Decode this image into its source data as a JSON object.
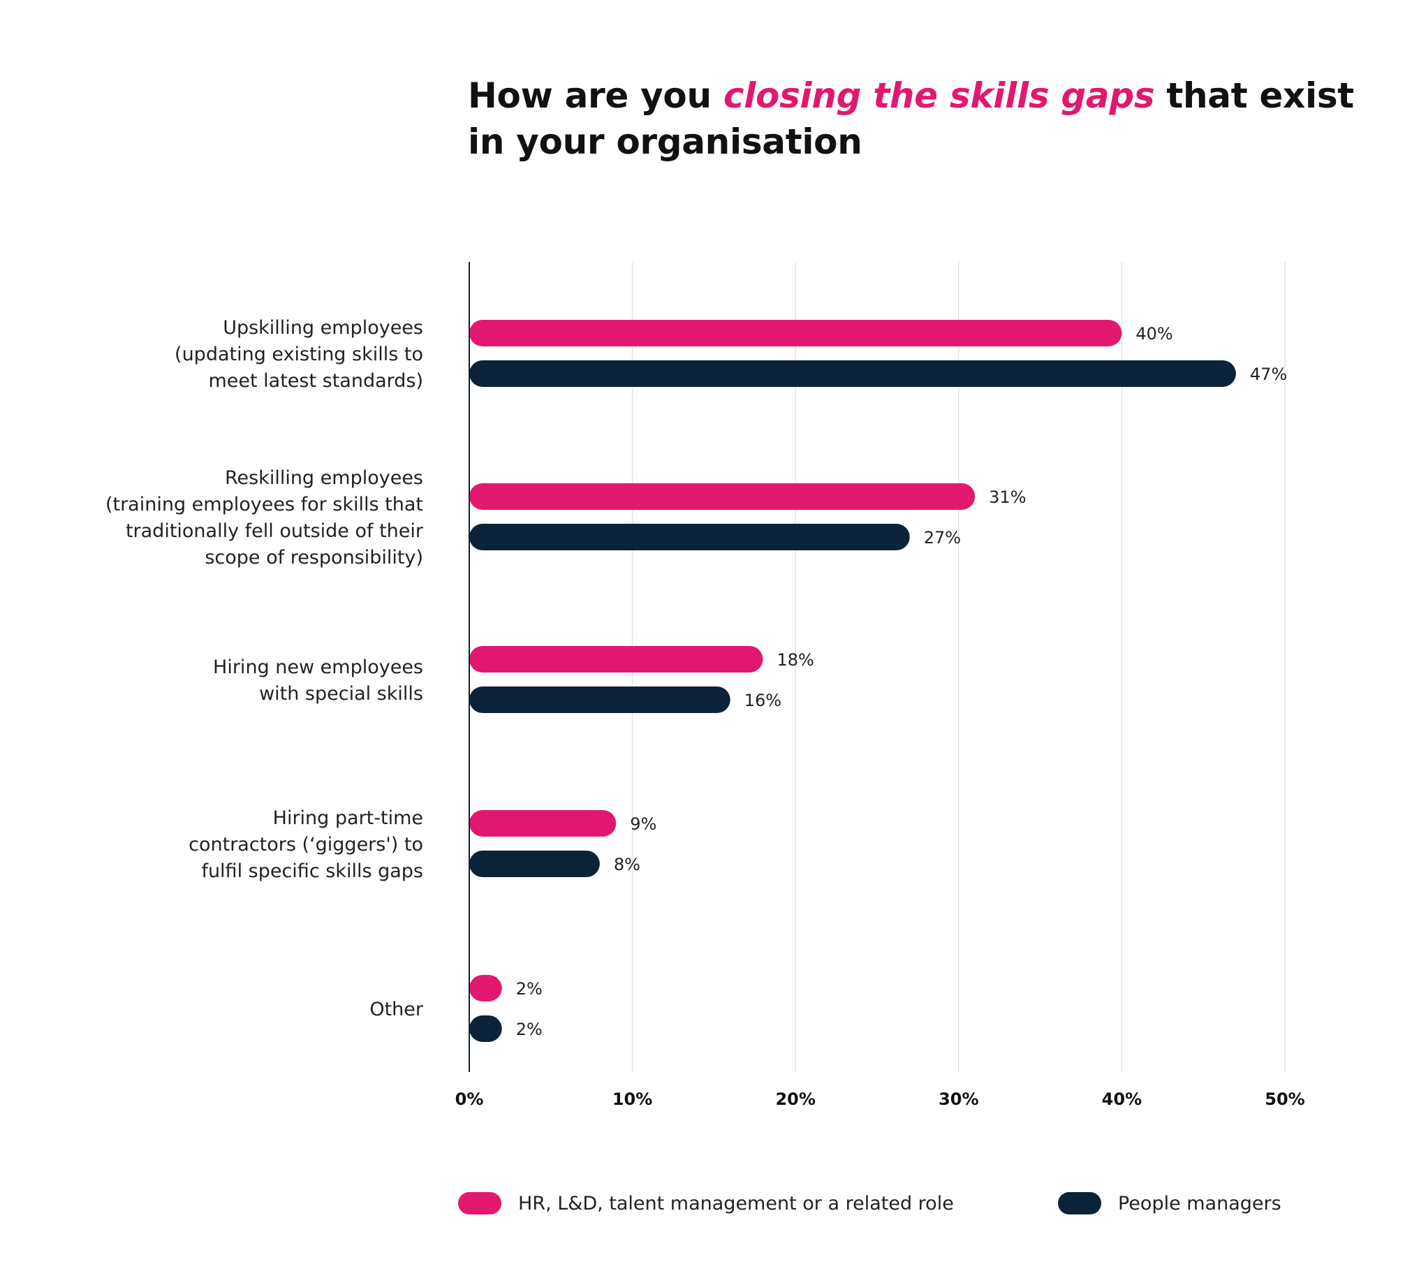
{
  "title": {
    "part1": "How are you ",
    "highlight": "closing the skills gaps",
    "part2": " that exist in your organisation"
  },
  "colors": {
    "accent": "#e2186f",
    "dark": "#0c2238",
    "grid": "#e4e4e4",
    "axis": "#0c2238",
    "text": "#222222"
  },
  "chart_data": {
    "type": "bar",
    "orientation": "horizontal",
    "categories": [
      [
        "Upskilling employees",
        "(updating existing skills to",
        "meet latest standards)"
      ],
      [
        "Reskilling employees",
        "(training employees for skills that",
        "traditionally fell outside of their",
        "scope of responsibility)"
      ],
      [
        "Hiring new employees",
        "with special skills"
      ],
      [
        "Hiring part-time",
        "contractors (‘giggers') to",
        "fulfil specific skills gaps"
      ],
      [
        "Other"
      ]
    ],
    "series": [
      {
        "name": "HR, L&D, talent management or a related role",
        "color": "#e2186f",
        "values": [
          40,
          31,
          18,
          9,
          2
        ],
        "labels": [
          "40%",
          "31%",
          "18%",
          "9%",
          "2%"
        ]
      },
      {
        "name": "People managers",
        "color": "#0c2238",
        "values": [
          47,
          27,
          16,
          8,
          2
        ],
        "labels": [
          "47%",
          "27%",
          "16%",
          "8%",
          "2%"
        ]
      }
    ],
    "xlim": [
      0,
      50
    ],
    "xticks": [
      "0%",
      "10%",
      "20%",
      "30%",
      "40%",
      "50%"
    ],
    "grid": true,
    "legend_position": "bottom"
  }
}
